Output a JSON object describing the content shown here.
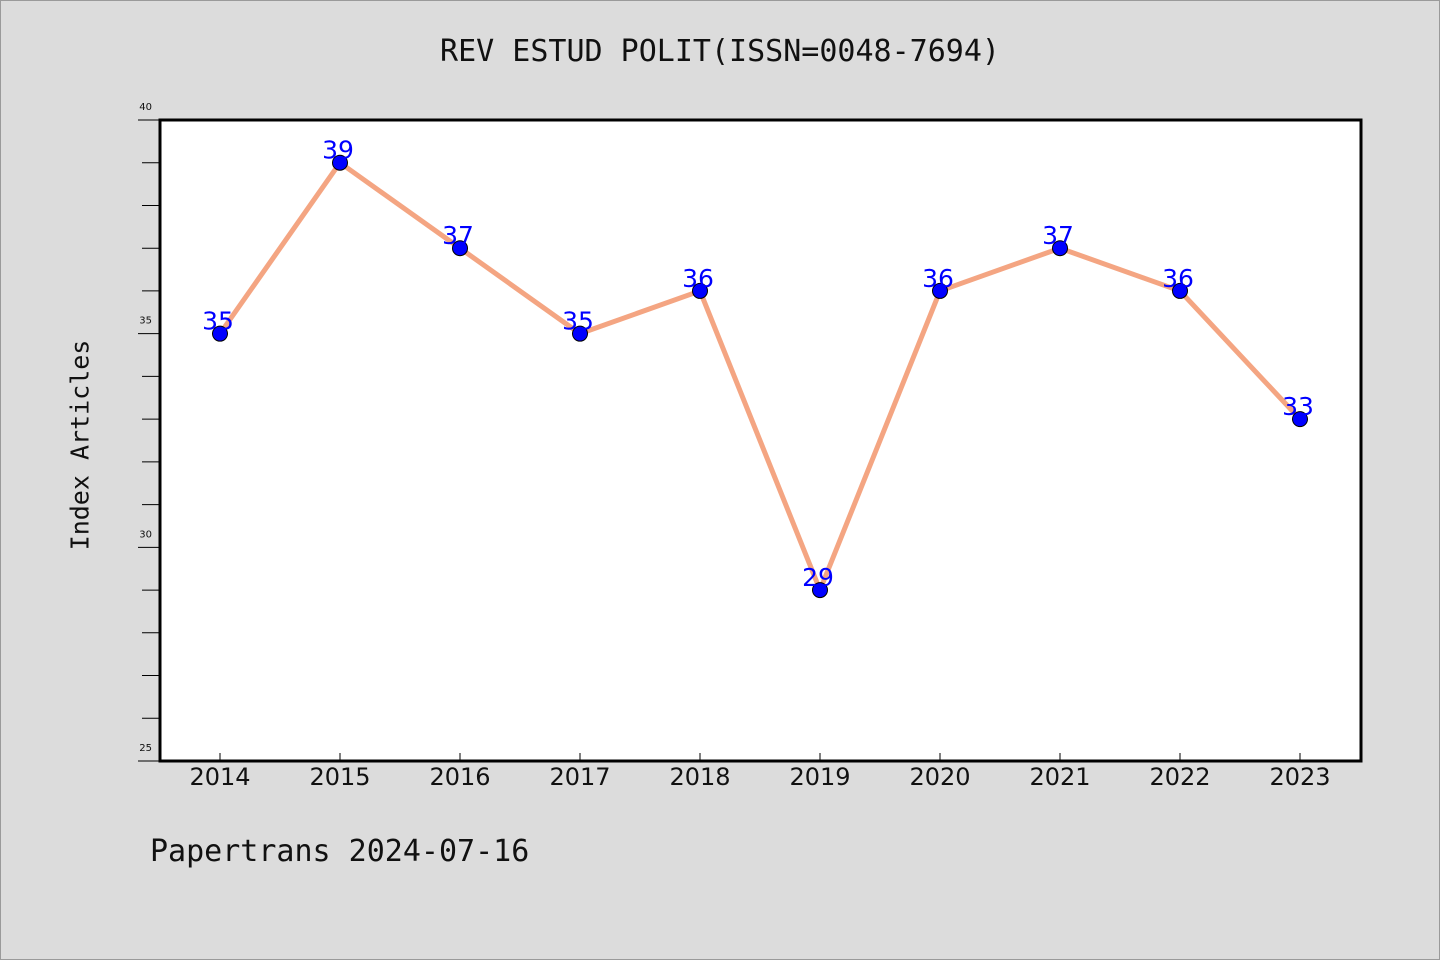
{
  "chart_data": {
    "type": "line",
    "title": "REV ESTUD POLIT(ISSN=0048-7694)",
    "ylabel": "Index Articles",
    "xlabel": "",
    "categories": [
      "2014",
      "2015",
      "2016",
      "2017",
      "2018",
      "2019",
      "2020",
      "2021",
      "2022",
      "2023"
    ],
    "series": [
      {
        "values": [
          35,
          39,
          37,
          35,
          36,
          29,
          36,
          37,
          36,
          33
        ],
        "line_color": "#f4a582",
        "marker_color": "#0000ff"
      }
    ],
    "ylim": [
      25,
      40
    ],
    "yticks": [
      "25",
      "30",
      "35",
      "40"
    ],
    "data_labels": [
      "35",
      "39",
      "37",
      "35",
      "36",
      "29",
      "36",
      "37",
      "36",
      "33"
    ],
    "grid": false,
    "legend": "none"
  },
  "footer": "Papertrans 2024-07-16",
  "colors": {
    "background": "#dcdcdc",
    "plot_area": "#ffffff",
    "line": "#f4a582",
    "marker": "#0000ff",
    "label": "#0000ff"
  }
}
